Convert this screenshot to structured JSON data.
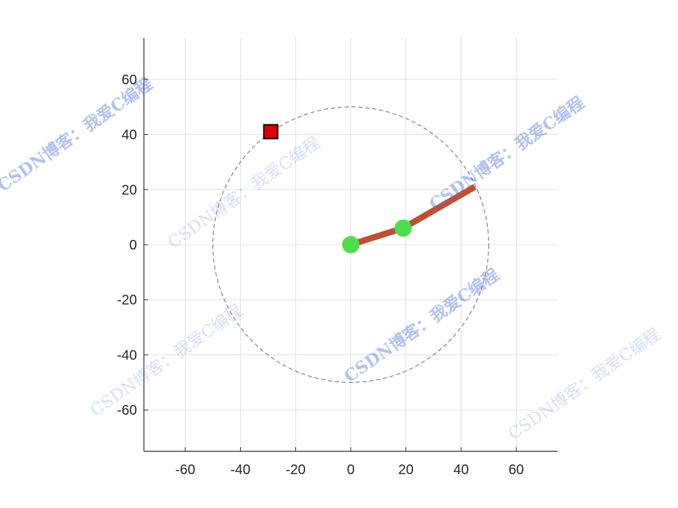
{
  "chart_data": {
    "type": "line",
    "title": "",
    "xlabel": "",
    "ylabel": "",
    "xlim": [
      -75,
      75
    ],
    "ylim": [
      -75,
      75
    ],
    "grid": true,
    "x_ticks": [
      -60,
      -40,
      -20,
      0,
      20,
      40,
      60
    ],
    "y_ticks": [
      -60,
      -40,
      -20,
      0,
      20,
      40,
      60
    ],
    "reach_circle": {
      "center": [
        0,
        0
      ],
      "radius": 50,
      "style": "dashed",
      "color": "#666666"
    },
    "arm": {
      "color": "#c24e34",
      "points": [
        [
          0,
          0
        ],
        [
          19,
          6
        ],
        [
          45,
          21
        ]
      ]
    },
    "joints": {
      "color": "#4cdf4c",
      "points": [
        [
          0,
          0
        ],
        [
          19,
          6
        ]
      ]
    },
    "target": {
      "x": -29,
      "y": 41,
      "marker": "square",
      "color": "#dd0000"
    }
  },
  "watermarks": [
    {
      "text": "CSDN博客：我爱C编程"
    },
    {
      "text": "CSDN博客：我爱C编程"
    },
    {
      "text": "CSDN博客：我爱C编程"
    },
    {
      "text": "CSDN博客：我爱C编程"
    },
    {
      "text": "CSDN博客：我爱C编程"
    },
    {
      "text": "CSDN博客：我爱C编程"
    }
  ]
}
